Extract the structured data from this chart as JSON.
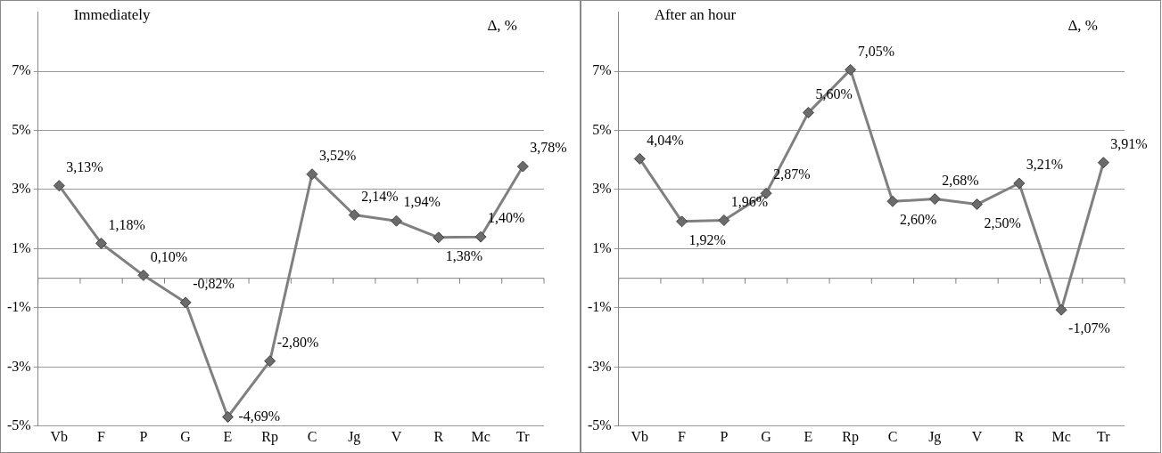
{
  "chart_data": [
    {
      "type": "line",
      "title": "Immediately",
      "ylabel": "Δ, %",
      "categories": [
        "Vb",
        "F",
        "P",
        "G",
        "E",
        "Rp",
        "C",
        "Jg",
        "V",
        "R",
        "Mc",
        "Tr"
      ],
      "series": [
        {
          "color": "#808080",
          "values": [
            3.13,
            1.18,
            0.1,
            -0.82,
            -4.69,
            -2.8,
            3.52,
            2.14,
            1.94,
            1.38,
            1.4,
            3.78
          ],
          "value_labels": [
            "3,13%",
            "1,18%",
            "0,10%",
            "-0,82%",
            "-4,69%",
            "-2,80%",
            "3,52%",
            "2,14%",
            "1,94%",
            "1,38%",
            "1,40%",
            "3,78%"
          ]
        }
      ],
      "ylim": [
        -5,
        9
      ],
      "yticks": [
        {
          "value": -5,
          "label": "-5%"
        },
        {
          "value": -3,
          "label": "-3%"
        },
        {
          "value": -1,
          "label": "-1%"
        },
        {
          "value": 1,
          "label": "1%"
        },
        {
          "value": 3,
          "label": "3%"
        },
        {
          "value": 5,
          "label": "5%"
        },
        {
          "value": 7,
          "label": "7%"
        }
      ],
      "ref_lines": [
        {
          "axis": "y",
          "value": 0,
          "color": "#808080"
        }
      ],
      "grid": "y",
      "legend": false,
      "marker": "diamond",
      "line_style": "solid"
    },
    {
      "type": "line",
      "title": "After an hour",
      "ylabel": "Δ, %",
      "categories": [
        "Vb",
        "F",
        "P",
        "G",
        "E",
        "Rp",
        "C",
        "Jg",
        "V",
        "R",
        "Mc",
        "Tr"
      ],
      "series": [
        {
          "color": "#808080",
          "values": [
            4.04,
            1.92,
            1.96,
            2.87,
            5.6,
            7.05,
            2.6,
            2.68,
            2.5,
            3.21,
            -1.07,
            3.91
          ],
          "value_labels": [
            "4,04%",
            "1,92%",
            "1,96%",
            "2,87%",
            "5,60%",
            "7,05%",
            "2,60%",
            "2,68%",
            "2,50%",
            "3,21%",
            "-1,07%",
            "3,91%"
          ]
        }
      ],
      "ylim": [
        -5,
        9
      ],
      "yticks": [
        {
          "value": -5,
          "label": "-5%"
        },
        {
          "value": -3,
          "label": "-3%"
        },
        {
          "value": -1,
          "label": "-1%"
        },
        {
          "value": 1,
          "label": "1%"
        },
        {
          "value": 3,
          "label": "3%"
        },
        {
          "value": 5,
          "label": "5%"
        },
        {
          "value": 7,
          "label": "7%"
        }
      ],
      "ref_lines": [
        {
          "axis": "y",
          "value": 0,
          "color": "#808080"
        }
      ],
      "grid": "y",
      "legend": false,
      "marker": "diamond",
      "line_style": "solid"
    }
  ]
}
